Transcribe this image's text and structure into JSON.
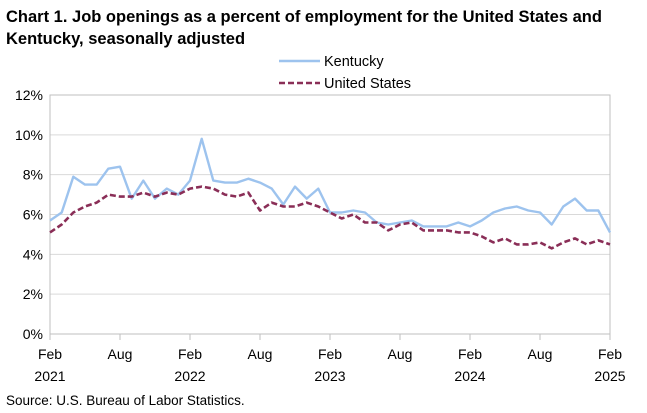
{
  "chart_data": {
    "type": "line",
    "title": "Chart 1. Job openings as a percent of employment for the United States and Kentucky, seasonally adjusted",
    "xlabel": "",
    "ylabel": "",
    "ylim": [
      0,
      12
    ],
    "yticks": [
      "0%",
      "2%",
      "4%",
      "6%",
      "8%",
      "10%",
      "12%"
    ],
    "xticks": [
      {
        "label": "Feb",
        "year": "2021"
      },
      {
        "label": "Aug",
        "year": ""
      },
      {
        "label": "Feb",
        "year": "2022"
      },
      {
        "label": "Aug",
        "year": ""
      },
      {
        "label": "Feb",
        "year": "2023"
      },
      {
        "label": "Aug",
        "year": ""
      },
      {
        "label": "Feb",
        "year": "2024"
      },
      {
        "label": "Aug",
        "year": ""
      },
      {
        "label": "Feb",
        "year": "2025"
      }
    ],
    "grid": true,
    "legend": "top",
    "series": [
      {
        "name": "Kentucky",
        "color": "#9dc3ee",
        "style": "solid",
        "values": [
          5.7,
          6.1,
          7.9,
          7.5,
          7.5,
          8.3,
          8.4,
          6.8,
          7.7,
          6.8,
          7.3,
          7.0,
          7.7,
          9.8,
          7.7,
          7.6,
          7.6,
          7.8,
          7.6,
          7.3,
          6.5,
          7.4,
          6.8,
          7.3,
          6.1,
          6.1,
          6.2,
          6.1,
          5.6,
          5.5,
          5.6,
          5.7,
          5.4,
          5.4,
          5.4,
          5.6,
          5.4,
          5.7,
          6.1,
          6.3,
          6.4,
          6.2,
          6.1,
          5.5,
          6.4,
          6.8,
          6.2,
          6.2,
          5.1
        ]
      },
      {
        "name": "United States",
        "color": "#8a2e57",
        "style": "dashed",
        "values": [
          5.1,
          5.5,
          6.1,
          6.4,
          6.6,
          7.0,
          6.9,
          6.9,
          7.1,
          6.9,
          7.1,
          7.0,
          7.3,
          7.4,
          7.3,
          7.0,
          6.9,
          7.1,
          6.2,
          6.6,
          6.4,
          6.4,
          6.6,
          6.4,
          6.1,
          5.8,
          6.0,
          5.6,
          5.6,
          5.2,
          5.5,
          5.6,
          5.2,
          5.2,
          5.2,
          5.1,
          5.1,
          4.9,
          4.6,
          4.8,
          4.5,
          4.5,
          4.6,
          4.3,
          4.6,
          4.8,
          4.5,
          4.7,
          4.5
        ]
      }
    ]
  },
  "source": "Source: U.S. Bureau of Labor Statistics."
}
